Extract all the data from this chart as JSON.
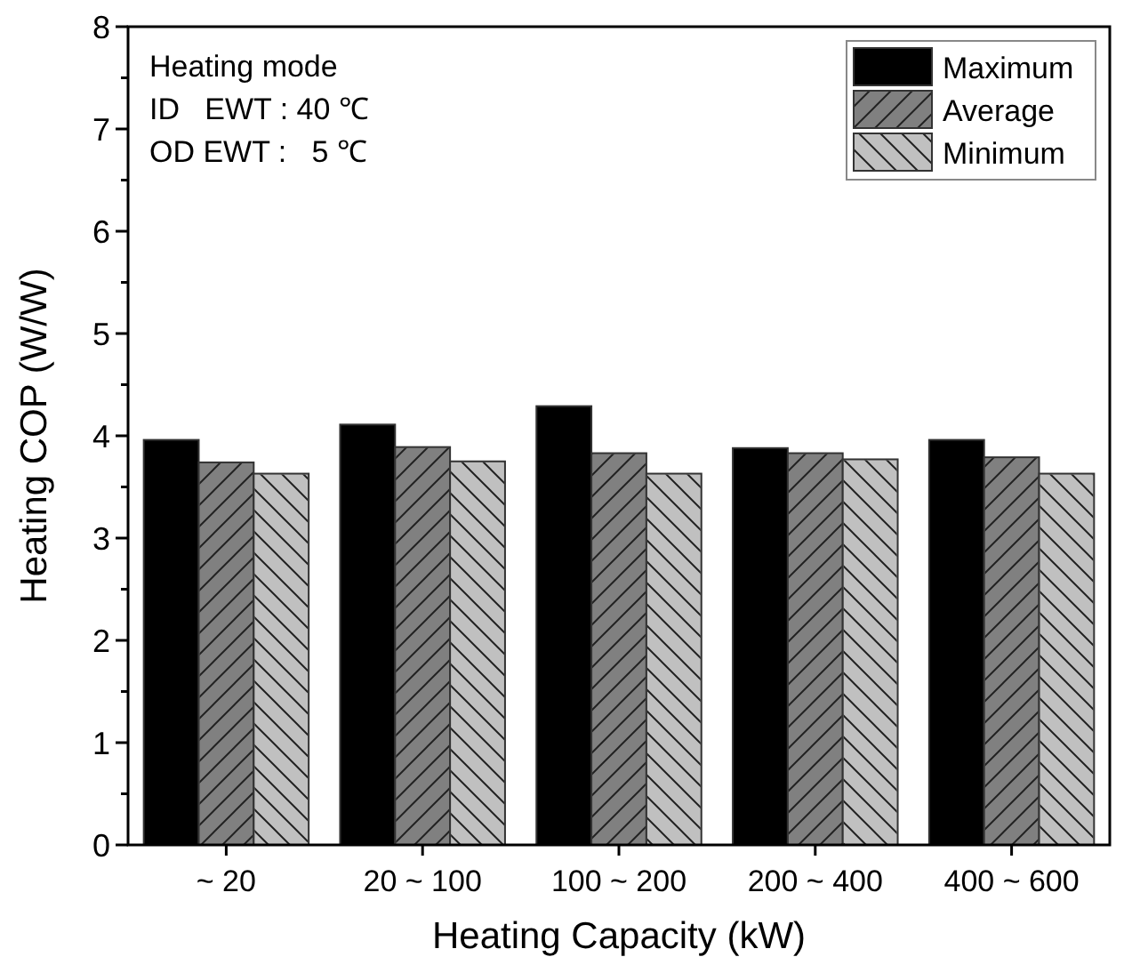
{
  "chart_data": {
    "type": "bar",
    "xlabel": "Heating Capacity (kW)",
    "ylabel": "Heating COP (W/W)",
    "categories": [
      "~ 20",
      "20 ~ 100",
      "100 ~ 200",
      "200 ~ 400",
      "400 ~ 600"
    ],
    "series": [
      {
        "name": "Maximum",
        "color": "#000000",
        "values": [
          3.96,
          4.11,
          4.29,
          3.88,
          3.96
        ]
      },
      {
        "name": "Average",
        "color": "#808080",
        "values": [
          3.74,
          3.89,
          3.83,
          3.83,
          3.79
        ]
      },
      {
        "name": "Minimum",
        "color": "#c0c0c0",
        "values": [
          3.63,
          3.75,
          3.63,
          3.77,
          3.63
        ]
      }
    ],
    "ylim": [
      0,
      8
    ],
    "yticks": [
      0,
      {
        "value": 0.5,
        "label": null
      },
      1,
      {
        "value": 1.5,
        "label": null
      },
      2,
      {
        "value": 2.5,
        "label": null
      },
      3,
      {
        "value": 3.5,
        "label": null
      },
      4,
      {
        "value": 4.5,
        "label": null
      },
      5,
      {
        "value": 5.5,
        "label": null
      },
      6,
      {
        "value": 6.5,
        "label": null
      },
      7,
      {
        "value": 7.5,
        "label": null
      },
      8
    ],
    "annotations": [
      "Heating mode",
      "ID   EWT : 40 ℃",
      "OD EWT :   5 ℃"
    ],
    "legend": "top right",
    "grid": false
  }
}
